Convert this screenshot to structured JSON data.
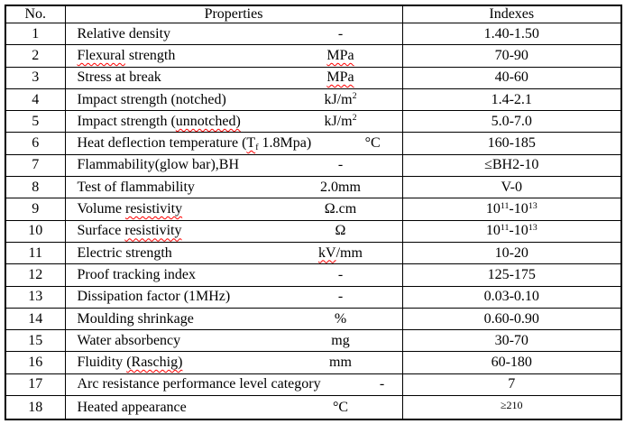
{
  "colors": {
    "background": "#ffffff",
    "border": "#000000",
    "text": "#000000",
    "squiggle": "#ff0000"
  },
  "table": {
    "headers": {
      "no": "No.",
      "properties": "Properties",
      "indexes": "Indexes"
    },
    "rows": [
      {
        "no": "1",
        "property": [
          {
            "t": "Relative density"
          }
        ],
        "unit": [
          {
            "t": "-"
          }
        ],
        "index": [
          {
            "t": "1.40-1.50"
          }
        ]
      },
      {
        "no": "2",
        "property": [
          {
            "t": "Flexural",
            "s": "sq"
          },
          {
            "t": " strength"
          }
        ],
        "unit": [
          {
            "t": "MPa",
            "s": "sq"
          }
        ],
        "index": [
          {
            "t": "70-90"
          }
        ]
      },
      {
        "no": "3",
        "property": [
          {
            "t": "Stress at break"
          }
        ],
        "unit": [
          {
            "t": "MPa",
            "s": "sq"
          }
        ],
        "index": [
          {
            "t": "40-60"
          }
        ]
      },
      {
        "no": "4",
        "property": [
          {
            "t": "Impact strength (notched)"
          }
        ],
        "unit": [
          {
            "t": "kJ/m"
          },
          {
            "t": "2",
            "s": "sup"
          }
        ],
        "index": [
          {
            "t": "1.4-2.1"
          }
        ]
      },
      {
        "no": "5",
        "property": [
          {
            "t": "Impact strength ("
          },
          {
            "t": "unnotched)",
            "s": "sq"
          }
        ],
        "unit": [
          {
            "t": "kJ/m"
          },
          {
            "t": "2",
            "s": "sup"
          }
        ],
        "index": [
          {
            "t": "5.0-7.0"
          }
        ]
      },
      {
        "no": "6",
        "property": [
          {
            "t": "Heat deflection temperature ("
          },
          {
            "t": "T",
            "s": "sq"
          },
          {
            "t": "f",
            "s": "sub sq"
          },
          {
            "t": " 1.8Mpa)"
          }
        ],
        "unit": [
          {
            "t": "°C"
          }
        ],
        "index": [
          {
            "t": "160-185"
          }
        ]
      },
      {
        "no": "7",
        "property": [
          {
            "t": "Flammability(glow bar),BH"
          }
        ],
        "unit": [
          {
            "t": "-"
          }
        ],
        "index": [
          {
            "t": "≤BH2-10"
          }
        ]
      },
      {
        "no": "8",
        "property": [
          {
            "t": "Test of flammability"
          }
        ],
        "unit": [
          {
            "t": "2.0mm"
          }
        ],
        "index": [
          {
            "t": "V-0"
          }
        ]
      },
      {
        "no": "9",
        "property": [
          {
            "t": "Volume "
          },
          {
            "t": "resistivity",
            "s": "sq"
          }
        ],
        "unit": [
          {
            "t": "Ω.cm"
          }
        ],
        "index": [
          {
            "t": "10"
          },
          {
            "t": "11",
            "s": "sup"
          },
          {
            "t": "-10"
          },
          {
            "t": "13",
            "s": "sup"
          }
        ]
      },
      {
        "no": "10",
        "property": [
          {
            "t": "Surface "
          },
          {
            "t": "resistivity",
            "s": "sq"
          }
        ],
        "unit": [
          {
            "t": "Ω"
          }
        ],
        "index": [
          {
            "t": "10"
          },
          {
            "t": "11",
            "s": "sup"
          },
          {
            "t": "-10"
          },
          {
            "t": "13",
            "s": "sup"
          }
        ]
      },
      {
        "no": "11",
        "property": [
          {
            "t": "Electric strength"
          }
        ],
        "unit": [
          {
            "t": "kV",
            "s": "sq"
          },
          {
            "t": "/mm"
          }
        ],
        "index": [
          {
            "t": "10-20"
          }
        ]
      },
      {
        "no": "12",
        "property": [
          {
            "t": "Proof tracking index"
          }
        ],
        "unit": [
          {
            "t": "-"
          }
        ],
        "index": [
          {
            "t": "125-175"
          }
        ]
      },
      {
        "no": "13",
        "property": [
          {
            "t": "Dissipation factor (1MHz)"
          }
        ],
        "unit": [
          {
            "t": "-"
          }
        ],
        "index": [
          {
            "t": "0.03-0.10"
          }
        ]
      },
      {
        "no": "14",
        "property": [
          {
            "t": "Moulding shrinkage"
          }
        ],
        "unit": [
          {
            "t": "%"
          }
        ],
        "index": [
          {
            "t": "0.60-0.90"
          }
        ]
      },
      {
        "no": "15",
        "property": [
          {
            "t": "Water absorbency"
          }
        ],
        "unit": [
          {
            "t": "mg"
          }
        ],
        "index": [
          {
            "t": "30-70"
          }
        ]
      },
      {
        "no": "16",
        "property": [
          {
            "t": "Fluidity "
          },
          {
            "t": "(Raschig)",
            "s": "sq"
          }
        ],
        "unit": [
          {
            "t": "mm"
          }
        ],
        "index": [
          {
            "t": "60-180"
          }
        ]
      },
      {
        "no": "17",
        "property": [
          {
            "t": "Arc resistance performance level category"
          }
        ],
        "unit": [
          {
            "t": "-"
          }
        ],
        "index": [
          {
            "t": "7"
          }
        ]
      },
      {
        "no": "18",
        "property": [
          {
            "t": "Heated appearance"
          }
        ],
        "unit": [
          {
            "t": "°C"
          }
        ],
        "index": [
          {
            "t": "≥210",
            "s": "sm"
          }
        ]
      }
    ]
  }
}
